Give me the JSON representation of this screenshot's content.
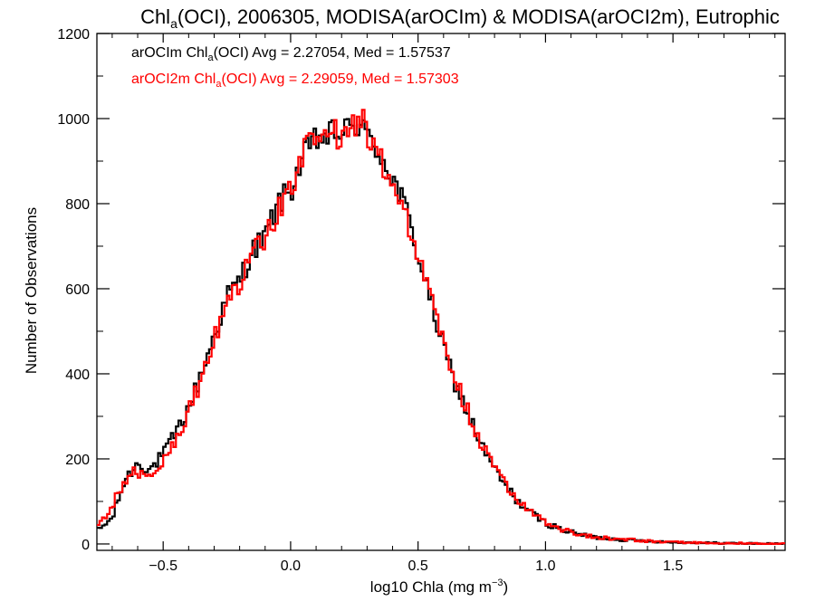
{
  "chart_data": {
    "type": "histogram-step",
    "title_parts": [
      "Chl",
      "a",
      "(OCI), 2006305, MODISA(arOCIm) & MODISA(arOCI2m), Eutrophic"
    ],
    "xlabel_parts": [
      "log10 Chla (mg m",
      "−3",
      ")"
    ],
    "ylabel": "Number of Observations",
    "xlim": [
      -0.76,
      1.94
    ],
    "ylim": [
      -15,
      1200
    ],
    "x_ticks": [
      -0.5,
      0.0,
      0.5,
      1.0,
      1.5
    ],
    "x_tick_labels": [
      "−0.5",
      "0.0",
      "0.5",
      "1.0",
      "1.5"
    ],
    "y_ticks": [
      0,
      200,
      400,
      600,
      800,
      1000,
      1200
    ],
    "y_tick_labels": [
      "0",
      "200",
      "400",
      "600",
      "800",
      "1000",
      "1200"
    ],
    "grid": false,
    "legend_placement": "top-left",
    "bin_width": 0.01,
    "series": [
      {
        "color": "#000000",
        "legend_parts": [
          "arOCIm Chl",
          "a",
          "(OCI) Avg = 2.27054, Med = 1.57537"
        ],
        "x": [
          -0.76,
          -0.7,
          -0.65,
          -0.6,
          -0.55,
          -0.5,
          -0.45,
          -0.4,
          -0.35,
          -0.3,
          -0.25,
          -0.2,
          -0.15,
          -0.1,
          -0.05,
          0.0,
          0.05,
          0.1,
          0.15,
          0.2,
          0.25,
          0.28,
          0.3,
          0.35,
          0.4,
          0.45,
          0.5,
          0.55,
          0.6,
          0.65,
          0.7,
          0.75,
          0.8,
          0.85,
          0.9,
          0.95,
          1.0,
          1.05,
          1.1,
          1.2,
          1.3,
          1.4,
          1.5,
          1.6,
          1.7,
          1.8,
          1.94
        ],
        "y": [
          30,
          60,
          150,
          190,
          175,
          210,
          260,
          320,
          400,
          490,
          580,
          620,
          690,
          720,
          800,
          830,
          910,
          950,
          960,
          970,
          975,
          1000,
          950,
          920,
          860,
          790,
          680,
          570,
          460,
          370,
          300,
          230,
          175,
          130,
          95,
          70,
          50,
          37,
          27,
          15,
          10,
          7,
          4,
          3,
          2,
          1,
          0
        ]
      },
      {
        "color": "#ff0000",
        "legend_parts": [
          "arOCI2m Chl",
          "a",
          "(OCI) Avg = 2.29059, Med = 1.57303"
        ],
        "x": [
          -0.76,
          -0.7,
          -0.65,
          -0.62,
          -0.6,
          -0.55,
          -0.5,
          -0.45,
          -0.4,
          -0.35,
          -0.3,
          -0.25,
          -0.2,
          -0.15,
          -0.1,
          -0.05,
          0.0,
          0.05,
          0.1,
          0.15,
          0.2,
          0.25,
          0.28,
          0.3,
          0.35,
          0.4,
          0.45,
          0.5,
          0.55,
          0.6,
          0.65,
          0.7,
          0.75,
          0.8,
          0.85,
          0.9,
          0.95,
          1.0,
          1.05,
          1.1,
          1.2,
          1.3,
          1.4,
          1.5,
          1.6,
          1.7,
          1.8,
          1.94
        ],
        "y": [
          40,
          90,
          150,
          175,
          160,
          160,
          190,
          250,
          310,
          390,
          480,
          580,
          610,
          680,
          710,
          790,
          830,
          920,
          955,
          965,
          960,
          975,
          1010,
          960,
          910,
          850,
          780,
          680,
          575,
          470,
          380,
          305,
          235,
          180,
          135,
          100,
          72,
          52,
          38,
          28,
          16,
          11,
          7,
          5,
          3,
          2,
          1,
          0
        ]
      }
    ]
  }
}
